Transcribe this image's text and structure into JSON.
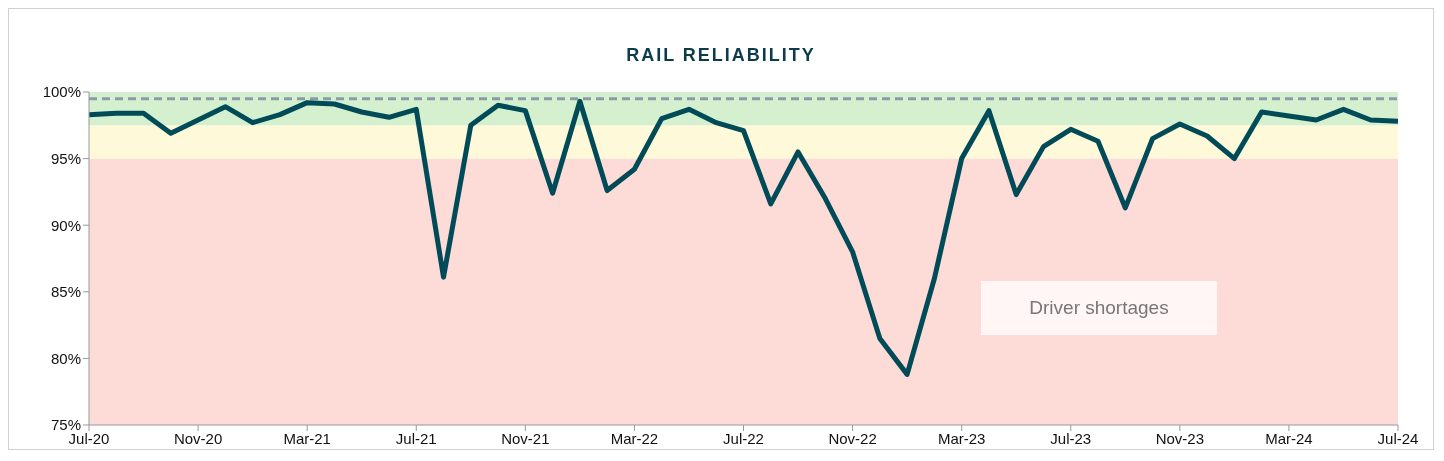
{
  "chart_data": {
    "type": "line",
    "title": "RAIL RELIABILITY",
    "x": [
      "2020-07",
      "2020-08",
      "2020-09",
      "2020-10",
      "2020-11",
      "2020-12",
      "2021-01",
      "2021-02",
      "2021-03",
      "2021-04",
      "2021-05",
      "2021-06",
      "2021-07",
      "2021-08",
      "2021-09",
      "2021-10",
      "2021-11",
      "2021-12",
      "2022-01",
      "2022-02",
      "2022-03",
      "2022-04",
      "2022-05",
      "2022-06",
      "2022-07",
      "2022-08",
      "2022-09",
      "2022-10",
      "2022-11",
      "2022-12",
      "2023-01",
      "2023-02",
      "2023-03",
      "2023-04",
      "2023-05",
      "2023-06",
      "2023-07",
      "2023-08",
      "2023-09",
      "2023-10",
      "2023-11",
      "2023-12",
      "2024-01",
      "2024-02",
      "2024-03",
      "2024-04",
      "2024-05",
      "2024-06",
      "2024-07"
    ],
    "series": [
      {
        "color": "#004b57",
        "values": [
          98.3,
          98.4,
          98.4,
          96.9,
          97.9,
          98.9,
          97.7,
          98.3,
          99.2,
          99.1,
          98.5,
          98.1,
          98.7,
          86.1,
          97.5,
          99.0,
          98.6,
          92.4,
          99.3,
          92.6,
          94.2,
          98.0,
          98.7,
          97.7,
          97.1,
          91.6,
          95.5,
          92.0,
          88.0,
          81.5,
          78.8,
          86.0,
          95.0,
          98.6,
          92.3,
          95.9,
          97.2,
          96.3,
          91.3,
          96.5,
          97.6,
          96.7,
          95.0,
          98.5,
          98.2,
          97.9,
          98.7,
          97.9,
          97.8
        ]
      }
    ],
    "xlim": [
      "2020-07",
      "2024-07"
    ],
    "xticks": [
      {
        "value": "2020-07",
        "label": "Jul-20"
      },
      {
        "value": "2020-11",
        "label": "Nov-20"
      },
      {
        "value": "2021-03",
        "label": "Mar-21"
      },
      {
        "value": "2021-07",
        "label": "Jul-21"
      },
      {
        "value": "2021-11",
        "label": "Nov-21"
      },
      {
        "value": "2022-03",
        "label": "Mar-22"
      },
      {
        "value": "2022-07",
        "label": "Jul-22"
      },
      {
        "value": "2022-11",
        "label": "Nov-22"
      },
      {
        "value": "2023-03",
        "label": "Mar-23"
      },
      {
        "value": "2023-07",
        "label": "Jul-23"
      },
      {
        "value": "2023-11",
        "label": "Nov-23"
      },
      {
        "value": "2024-03",
        "label": "Mar-24"
      },
      {
        "value": "2024-07",
        "label": "Jul-24"
      }
    ],
    "ylim": [
      75,
      100
    ],
    "yticks": [
      {
        "value": 75,
        "label": "75%"
      },
      {
        "value": 80,
        "label": "80%"
      },
      {
        "value": 85,
        "label": "85%"
      },
      {
        "value": 90,
        "label": "90%"
      },
      {
        "value": 95,
        "label": "95%"
      },
      {
        "value": 100,
        "label": "100%"
      }
    ],
    "bands": [
      {
        "axis": "y",
        "from": 75,
        "to": 95,
        "color": "#fddcd8"
      },
      {
        "axis": "y",
        "from": 95,
        "to": 97.5,
        "color": "#fef9d8"
      },
      {
        "axis": "y",
        "from": 97.5,
        "to": 100,
        "color": "#d4f0cf"
      }
    ],
    "ref_lines": [
      {
        "axis": "y",
        "value": 99.5,
        "color": "#8a9aa8",
        "line_style": "dashed"
      }
    ],
    "annotations": [
      "Driver shortages"
    ],
    "grid": false,
    "legend": false,
    "marker": "none",
    "line_style": "solid"
  }
}
